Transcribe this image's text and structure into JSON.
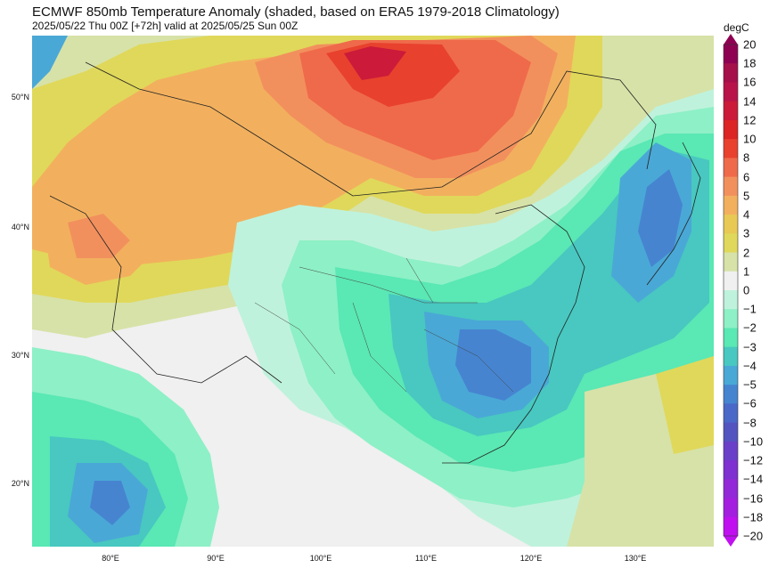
{
  "header": {
    "title": "ECMWF 850mb Temperature Anomaly (shaded, based on ERA5 1979-2018 Climatology)",
    "subtitle": "2025/05/22 Thu 00Z [+72h] valid at 2025/05/25 Sun 00Z"
  },
  "axes": {
    "lat_labels": [
      "50°N",
      "40°N",
      "30°N",
      "20°N"
    ],
    "lon_labels": [
      "80°E",
      "90°E",
      "100°E",
      "110°E",
      "120°E",
      "130°E"
    ]
  },
  "colorbar": {
    "unit": "degC",
    "levels": [
      "20",
      "18",
      "16",
      "14",
      "12",
      "10",
      "8",
      "6",
      "5",
      "4",
      "3",
      "2",
      "1",
      "0",
      "−1",
      "−2",
      "−3",
      "−4",
      "−5",
      "−6",
      "−8",
      "−10",
      "−12",
      "−14",
      "−16",
      "−18",
      "−20"
    ],
    "colors": [
      "#8e0152",
      "#a50f4a",
      "#b8144a",
      "#cb1a3a",
      "#dc2525",
      "#e8412e",
      "#ef6a4a",
      "#f2905d",
      "#f2b05e",
      "#e8c954",
      "#e0d85a",
      "#d7e2a8",
      "#f0f0f0",
      "#bff2dc",
      "#8ef0c6",
      "#5ae8b4",
      "#48c8c0",
      "#4aa8d6",
      "#4684d0",
      "#4a68c8",
      "#5454c0",
      "#6a40c8",
      "#7e30d0",
      "#9228d8",
      "#a41ee0",
      "#c010f0"
    ]
  }
}
